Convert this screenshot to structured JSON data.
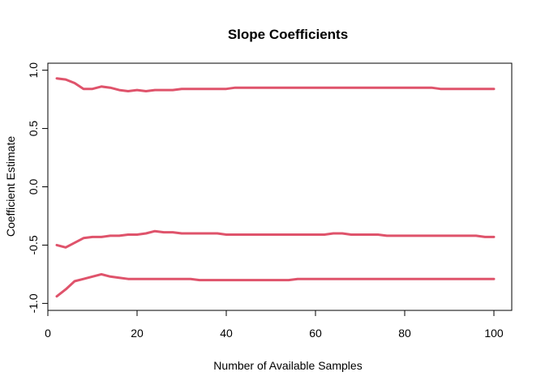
{
  "chart_data": {
    "type": "line",
    "title": "Slope Coefficients",
    "xlabel": "Number of Available Samples",
    "ylabel": "Coefficient Estimate",
    "xlim": [
      0,
      104
    ],
    "ylim": [
      -1.06,
      1.06
    ],
    "x_ticks": [
      0,
      20,
      40,
      60,
      80,
      100
    ],
    "x_tick_labels": [
      "0",
      "20",
      "40",
      "60",
      "80",
      "100"
    ],
    "y_ticks": [
      -1.0,
      -0.5,
      0.0,
      0.5,
      1.0
    ],
    "y_tick_labels": [
      "-1.0",
      "-0.5",
      "0.0",
      "0.5",
      "1.0"
    ],
    "grid": false,
    "legend": "none",
    "line_color": "#DF536B",
    "x": [
      2,
      4,
      6,
      8,
      10,
      12,
      14,
      16,
      18,
      20,
      22,
      24,
      26,
      28,
      30,
      32,
      34,
      36,
      38,
      40,
      42,
      44,
      46,
      48,
      50,
      52,
      54,
      56,
      58,
      60,
      62,
      64,
      66,
      68,
      70,
      72,
      74,
      76,
      78,
      80,
      82,
      84,
      86,
      88,
      90,
      92,
      94,
      96,
      98,
      100
    ],
    "series": [
      {
        "values": [
          0.93,
          0.92,
          0.89,
          0.84,
          0.84,
          0.86,
          0.85,
          0.83,
          0.82,
          0.83,
          0.82,
          0.83,
          0.83,
          0.83,
          0.84,
          0.84,
          0.84,
          0.84,
          0.84,
          0.84,
          0.85,
          0.85,
          0.85,
          0.85,
          0.85,
          0.85,
          0.85,
          0.85,
          0.85,
          0.85,
          0.85,
          0.85,
          0.85,
          0.85,
          0.85,
          0.85,
          0.85,
          0.85,
          0.85,
          0.85,
          0.85,
          0.85,
          0.85,
          0.84,
          0.84,
          0.84,
          0.84,
          0.84,
          0.84,
          0.84
        ]
      },
      {
        "values": [
          -0.5,
          -0.52,
          -0.48,
          -0.44,
          -0.43,
          -0.43,
          -0.42,
          -0.42,
          -0.41,
          -0.41,
          -0.4,
          -0.38,
          -0.39,
          -0.39,
          -0.4,
          -0.4,
          -0.4,
          -0.4,
          -0.4,
          -0.41,
          -0.41,
          -0.41,
          -0.41,
          -0.41,
          -0.41,
          -0.41,
          -0.41,
          -0.41,
          -0.41,
          -0.41,
          -0.41,
          -0.4,
          -0.4,
          -0.41,
          -0.41,
          -0.41,
          -0.41,
          -0.42,
          -0.42,
          -0.42,
          -0.42,
          -0.42,
          -0.42,
          -0.42,
          -0.42,
          -0.42,
          -0.42,
          -0.42,
          -0.43,
          -0.43
        ]
      },
      {
        "values": [
          -0.94,
          -0.88,
          -0.81,
          -0.79,
          -0.77,
          -0.75,
          -0.77,
          -0.78,
          -0.79,
          -0.79,
          -0.79,
          -0.79,
          -0.79,
          -0.79,
          -0.79,
          -0.79,
          -0.8,
          -0.8,
          -0.8,
          -0.8,
          -0.8,
          -0.8,
          -0.8,
          -0.8,
          -0.8,
          -0.8,
          -0.8,
          -0.79,
          -0.79,
          -0.79,
          -0.79,
          -0.79,
          -0.79,
          -0.79,
          -0.79,
          -0.79,
          -0.79,
          -0.79,
          -0.79,
          -0.79,
          -0.79,
          -0.79,
          -0.79,
          -0.79,
          -0.79,
          -0.79,
          -0.79,
          -0.79,
          -0.79,
          -0.79
        ]
      }
    ]
  }
}
